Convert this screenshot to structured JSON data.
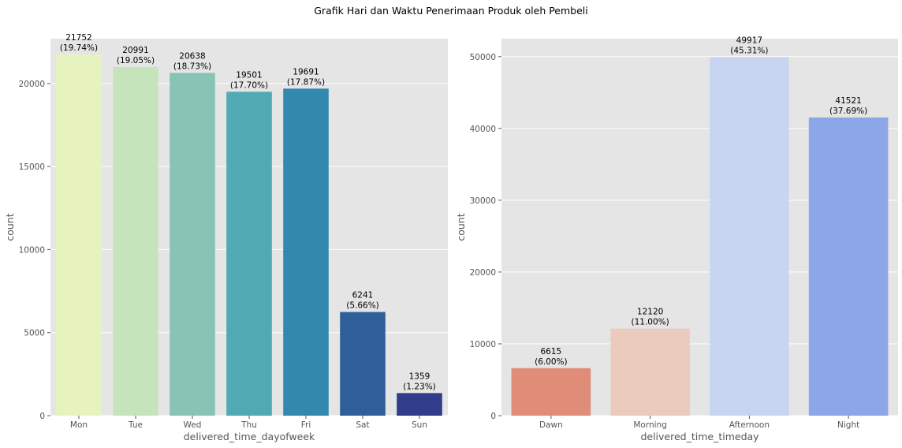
{
  "figure": {
    "suptitle": "Grafik Hari dan Waktu Penerimaan Produk oleh Pembeli"
  },
  "chart_data": [
    {
      "type": "bar",
      "xlabel": "delivered_time_dayofweek",
      "ylabel": "count",
      "categories": [
        "Mon",
        "Tue",
        "Wed",
        "Thu",
        "Fri",
        "Sat",
        "Sun"
      ],
      "values": [
        21752,
        20991,
        20638,
        19501,
        19691,
        6241,
        1359
      ],
      "percent_labels": [
        "(19.74%)",
        "(19.05%)",
        "(18.73%)",
        "(17.70%)",
        "(17.87%)",
        "(5.66%)",
        "(1.23%)"
      ],
      "colors": [
        "#e6f3bf",
        "#c6e4bb",
        "#89c3b5",
        "#51a9b3",
        "#3189ad",
        "#2f5e98",
        "#313c8a"
      ],
      "ylim": [
        0,
        22700
      ],
      "yticks": [
        0,
        5000,
        10000,
        15000,
        20000
      ],
      "grid": true
    },
    {
      "type": "bar",
      "xlabel": "delivered_time_timeday",
      "ylabel": "count",
      "categories": [
        "Dawn",
        "Morning",
        "Afternoon",
        "Night"
      ],
      "values": [
        6615,
        12120,
        49917,
        41521
      ],
      "percent_labels": [
        "(6.00%)",
        "(11.00%)",
        "(45.31%)",
        "(37.69%)"
      ],
      "colors": [
        "#df8d78",
        "#eacbbd",
        "#c8d5f0",
        "#8ca6e8"
      ],
      "ylim": [
        0,
        52500
      ],
      "yticks": [
        0,
        10000,
        20000,
        30000,
        40000,
        50000
      ],
      "grid": true
    }
  ]
}
